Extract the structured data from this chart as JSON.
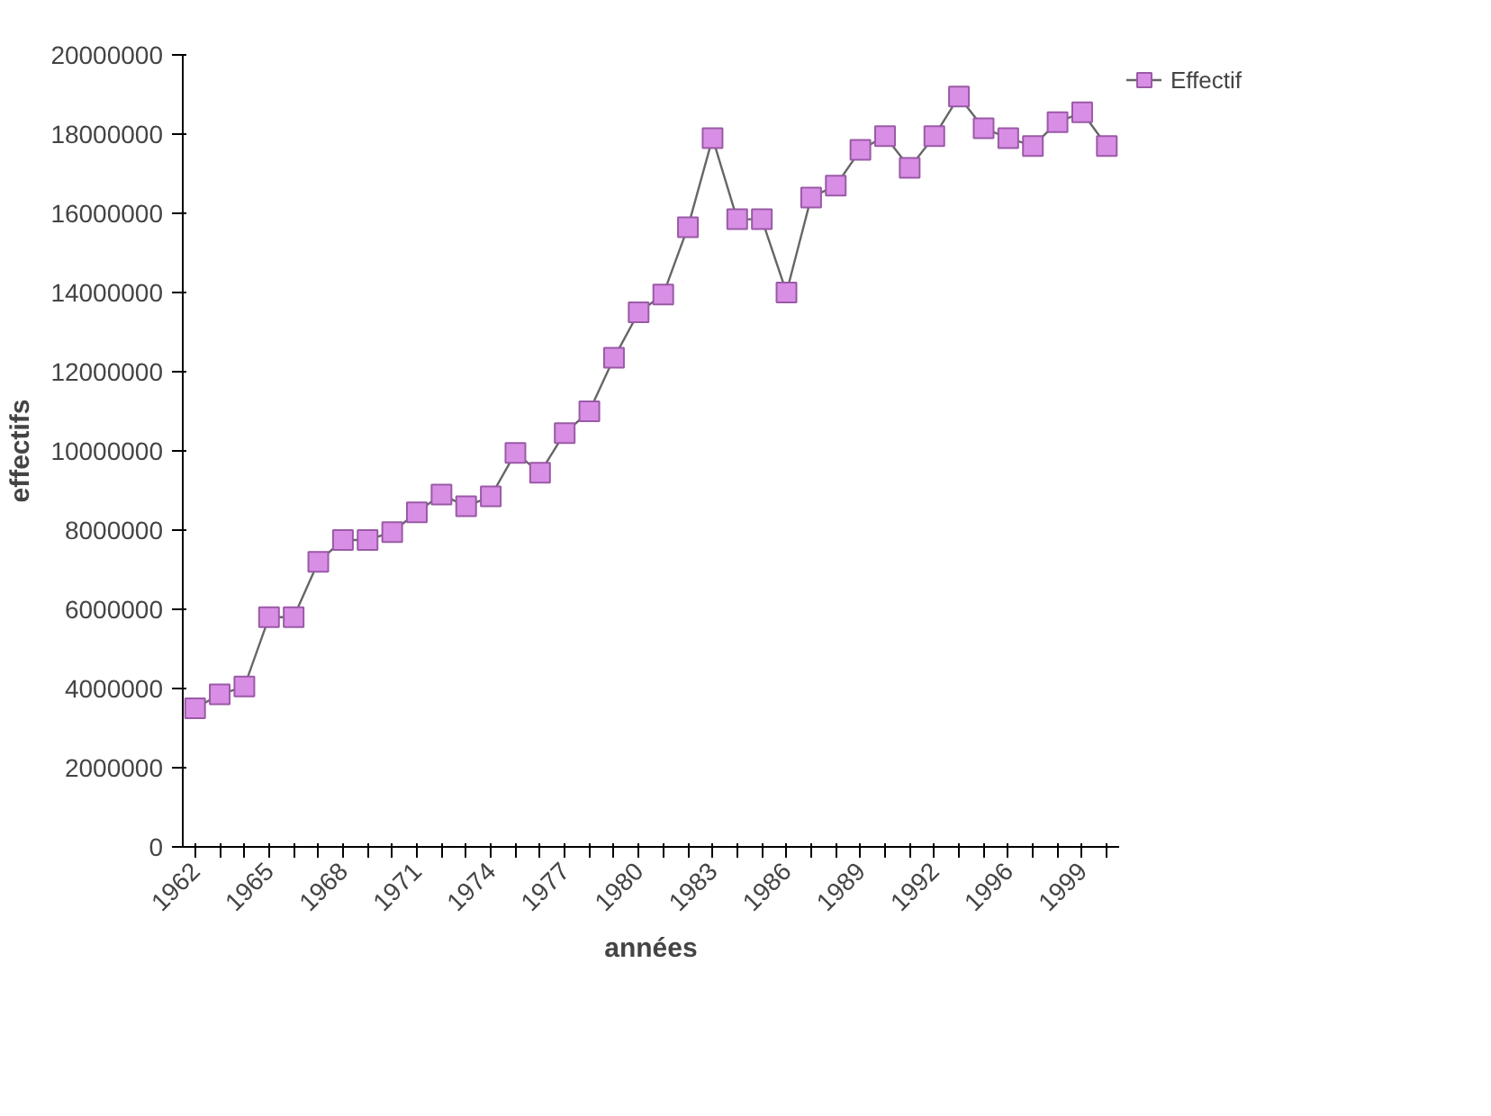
{
  "chart_data": {
    "type": "line",
    "xlabel": "années",
    "ylabel": "effectifs",
    "categories": [
      "1962",
      null,
      null,
      "1965",
      null,
      null,
      "1968",
      null,
      null,
      "1971",
      null,
      null,
      "1974",
      null,
      null,
      "1977",
      null,
      null,
      "1980",
      null,
      null,
      "1983",
      null,
      null,
      "1986",
      null,
      null,
      "1989",
      null,
      null,
      "1992",
      null,
      null,
      "1996",
      null,
      null,
      "1999",
      null
    ],
    "series": [
      {
        "name": "Effectif",
        "color": "#d98ee6",
        "values": [
          3500000,
          3850000,
          4050000,
          5800000,
          5800000,
          7200000,
          7750000,
          7750000,
          7950000,
          8450000,
          8900000,
          8600000,
          8850000,
          9950000,
          9450000,
          10450000,
          11000000,
          12350000,
          13500000,
          13950000,
          15650000,
          17900000,
          15850000,
          15850000,
          14000000,
          16400000,
          16700000,
          17600000,
          17950000,
          17150000,
          17950000,
          18950000,
          18150000,
          17900000,
          17700000,
          18300000,
          18550000,
          17700000
        ]
      }
    ],
    "ylim": [
      0,
      20000000
    ],
    "yticks": [
      0,
      2000000,
      4000000,
      6000000,
      8000000,
      10000000,
      12000000,
      14000000,
      16000000,
      18000000,
      20000000
    ],
    "grid": false,
    "legend": "top right",
    "marker": "square",
    "line_style": "solid"
  }
}
